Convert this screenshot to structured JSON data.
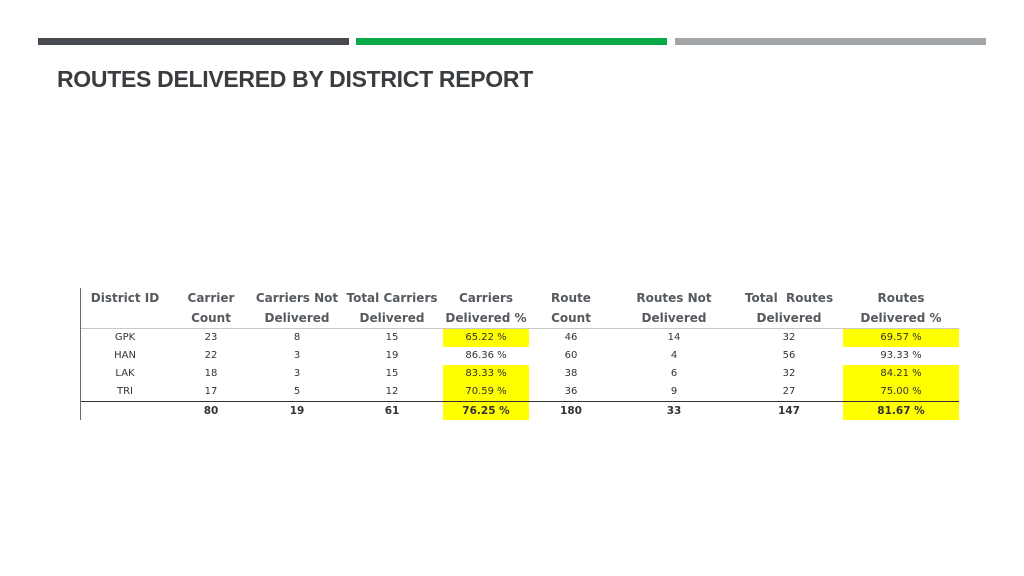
{
  "slide": {
    "title": "ROUTES DELIVERED BY DISTRICT REPORT",
    "accent_colors": [
      "#474b4f",
      "#0aa94a",
      "#a3a6a9"
    ]
  },
  "report": {
    "highlight_color": "#ffff00",
    "headers": {
      "district_id": [
        "District ID",
        ""
      ],
      "carrier_count": [
        "Carrier",
        "Count"
      ],
      "carriers_not_delivered": [
        "Carriers Not",
        "Delivered"
      ],
      "total_carriers_delivered": [
        "Total Carriers",
        "Delivered"
      ],
      "carriers_delivered_pct": [
        "Carriers",
        "Delivered %"
      ],
      "route_count": [
        "Route",
        "Count"
      ],
      "routes_not_delivered": [
        "Routes Not",
        "Delivered"
      ],
      "total_routes_delivered": [
        "Total  Routes",
        "Delivered"
      ],
      "routes_delivered_pct": [
        "Routes",
        "Delivered %"
      ]
    },
    "rows": [
      {
        "district_id": "GPK",
        "carrier_count": "23",
        "carriers_not_delivered": "8",
        "total_carriers_delivered": "15",
        "carriers_delivered_pct": "65.22 %",
        "route_count": "46",
        "routes_not_delivered": "14",
        "total_routes_delivered": "32",
        "routes_delivered_pct": "69.57 %",
        "hl_carriers": true,
        "hl_routes": true
      },
      {
        "district_id": "HAN",
        "carrier_count": "22",
        "carriers_not_delivered": "3",
        "total_carriers_delivered": "19",
        "carriers_delivered_pct": "86.36 %",
        "route_count": "60",
        "routes_not_delivered": "4",
        "total_routes_delivered": "56",
        "routes_delivered_pct": "93.33 %",
        "hl_carriers": false,
        "hl_routes": false
      },
      {
        "district_id": "LAK",
        "carrier_count": "18",
        "carriers_not_delivered": "3",
        "total_carriers_delivered": "15",
        "carriers_delivered_pct": "83.33 %",
        "route_count": "38",
        "routes_not_delivered": "6",
        "total_routes_delivered": "32",
        "routes_delivered_pct": "84.21 %",
        "hl_carriers": true,
        "hl_routes": true
      },
      {
        "district_id": "TRI",
        "carrier_count": "17",
        "carriers_not_delivered": "5",
        "total_carriers_delivered": "12",
        "carriers_delivered_pct": "70.59 %",
        "route_count": "36",
        "routes_not_delivered": "9",
        "total_routes_delivered": "27",
        "routes_delivered_pct": "75.00 %",
        "hl_carriers": true,
        "hl_routes": true
      }
    ],
    "total": {
      "district_id": "",
      "carrier_count": "80",
      "carriers_not_delivered": "19",
      "total_carriers_delivered": "61",
      "carriers_delivered_pct": "76.25 %",
      "route_count": "180",
      "routes_not_delivered": "33",
      "total_routes_delivered": "147",
      "routes_delivered_pct": "81.67 %",
      "hl_carriers": true,
      "hl_routes": true
    }
  }
}
